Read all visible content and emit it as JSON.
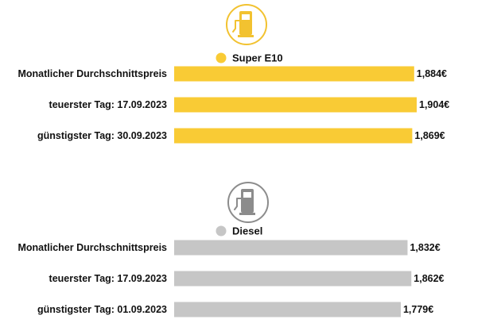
{
  "chart_data": [
    {
      "type": "bar",
      "orientation": "horizontal",
      "icon": "fuel-pump-icon",
      "color": "#F9CB35",
      "icon_color": "#F2C230",
      "legend": "Super E10",
      "categories": [
        "Monatlicher Durchschnittspreis",
        "teuerster Tag: 17.09.2023",
        "günstigster Tag: 30.09.2023"
      ],
      "values": [
        1.884,
        1.904,
        1.869
      ],
      "value_labels": [
        "1,884€",
        "1,904€",
        "1,869€"
      ]
    },
    {
      "type": "bar",
      "orientation": "horizontal",
      "icon": "fuel-pump-icon",
      "color": "#C6C6C6",
      "icon_color": "#8C8C8C",
      "legend": "Diesel",
      "categories": [
        "Monatlicher Durchschnittspreis",
        "teuerster Tag: 17.09.2023",
        "günstigster Tag: 01.09.2023"
      ],
      "values": [
        1.832,
        1.862,
        1.779
      ],
      "value_labels": [
        "1,832€",
        "1,862€",
        "1,779€"
      ]
    }
  ]
}
